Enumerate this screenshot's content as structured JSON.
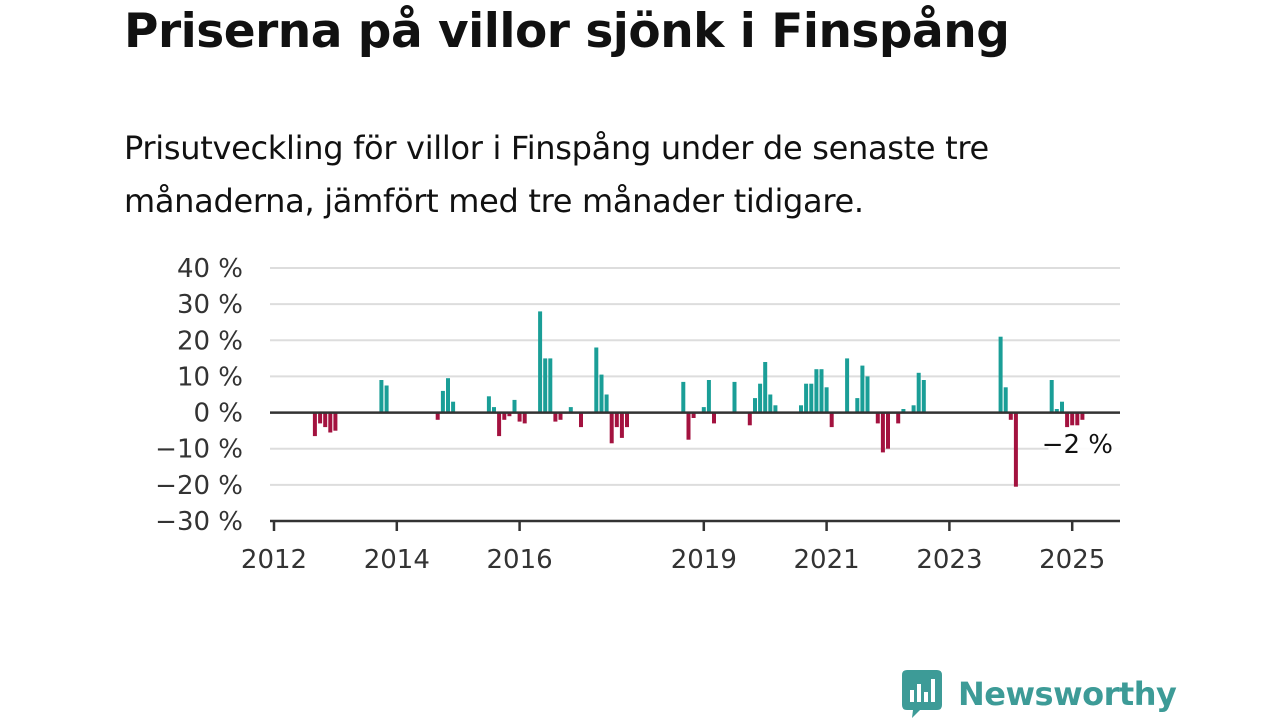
{
  "title": "Priserna på villor sjönk i Finspång",
  "subtitle": "Prisutveckling för villor i Finspång under de senaste tre månaderna, jämfört med tre månader tidigare.",
  "brand": {
    "name": "Newsworthy",
    "color": "#3d9b97",
    "icon": "bar-chart-speech-bubble-icon"
  },
  "colors": {
    "positive": "#1a9e97",
    "negative": "#a3123f",
    "gridline": "#dddddd",
    "axis": "#333333"
  },
  "chart_data": {
    "type": "bar",
    "title": "Priserna på villor sjönk i Finspång",
    "subtitle": "Prisutveckling för villor i Finspång under de senaste tre månaderna, jämfört med tre månader tidigare.",
    "xlabel": "",
    "ylabel": "",
    "ylim": [
      -30,
      40
    ],
    "yticks": [
      40,
      30,
      20,
      10,
      0,
      -10,
      -20,
      -30
    ],
    "ytick_labels": [
      "40 %",
      "30 %",
      "20 %",
      "10 %",
      "0 %",
      "−10 %",
      "−20 %",
      "−30 %"
    ],
    "xticks": [
      "2012",
      "2014",
      "2016",
      "2019",
      "2021",
      "2023",
      "2025"
    ],
    "grid": true,
    "annotation": {
      "text": "−2 %",
      "target": "last bar"
    },
    "unit": "%",
    "bars": [
      {
        "x": "2012-09",
        "y": -6.5
      },
      {
        "x": "2012-10",
        "y": -3
      },
      {
        "x": "2012-11",
        "y": -4
      },
      {
        "x": "2012-12",
        "y": -5.5
      },
      {
        "x": "2013-01",
        "y": -5
      },
      {
        "x": "2013-10",
        "y": 9
      },
      {
        "x": "2013-11",
        "y": 7.5
      },
      {
        "x": "2014-09",
        "y": -2
      },
      {
        "x": "2014-10",
        "y": 6
      },
      {
        "x": "2014-11",
        "y": 9.5
      },
      {
        "x": "2014-12",
        "y": 3
      },
      {
        "x": "2015-07",
        "y": 4.5
      },
      {
        "x": "2015-08",
        "y": 1.5
      },
      {
        "x": "2015-09",
        "y": -6.5
      },
      {
        "x": "2015-10",
        "y": -2
      },
      {
        "x": "2015-11",
        "y": -1
      },
      {
        "x": "2015-12",
        "y": 3.5
      },
      {
        "x": "2016-01",
        "y": -2.5
      },
      {
        "x": "2016-02",
        "y": -3
      },
      {
        "x": "2016-05",
        "y": 28
      },
      {
        "x": "2016-06",
        "y": 15
      },
      {
        "x": "2016-07",
        "y": 15
      },
      {
        "x": "2016-08",
        "y": -2.5
      },
      {
        "x": "2016-09",
        "y": -2
      },
      {
        "x": "2016-11",
        "y": 1.5
      },
      {
        "x": "2017-01",
        "y": -4
      },
      {
        "x": "2017-04",
        "y": 18
      },
      {
        "x": "2017-05",
        "y": 10.5
      },
      {
        "x": "2017-06",
        "y": 5
      },
      {
        "x": "2017-07",
        "y": -8.5
      },
      {
        "x": "2017-08",
        "y": -4
      },
      {
        "x": "2017-09",
        "y": -7
      },
      {
        "x": "2017-10",
        "y": -4
      },
      {
        "x": "2018-09",
        "y": 8.5
      },
      {
        "x": "2018-10",
        "y": -7.5
      },
      {
        "x": "2018-11",
        "y": -1.5
      },
      {
        "x": "2019-01",
        "y": 1.5
      },
      {
        "x": "2019-02",
        "y": 9
      },
      {
        "x": "2019-03",
        "y": -3
      },
      {
        "x": "2019-07",
        "y": 8.5
      },
      {
        "x": "2019-10",
        "y": -3.5
      },
      {
        "x": "2019-11",
        "y": 4
      },
      {
        "x": "2019-12",
        "y": 8
      },
      {
        "x": "2020-01",
        "y": 14
      },
      {
        "x": "2020-02",
        "y": 5
      },
      {
        "x": "2020-03",
        "y": 2
      },
      {
        "x": "2020-08",
        "y": 2
      },
      {
        "x": "2020-09",
        "y": 8
      },
      {
        "x": "2020-10",
        "y": 8
      },
      {
        "x": "2020-11",
        "y": 12
      },
      {
        "x": "2020-12",
        "y": 12
      },
      {
        "x": "2021-01",
        "y": 7
      },
      {
        "x": "2021-02",
        "y": -4
      },
      {
        "x": "2021-05",
        "y": 15
      },
      {
        "x": "2021-07",
        "y": 4
      },
      {
        "x": "2021-08",
        "y": 13
      },
      {
        "x": "2021-09",
        "y": 10
      },
      {
        "x": "2021-11",
        "y": -3
      },
      {
        "x": "2021-12",
        "y": -11
      },
      {
        "x": "2022-01",
        "y": -10
      },
      {
        "x": "2022-03",
        "y": -3
      },
      {
        "x": "2022-04",
        "y": 1
      },
      {
        "x": "2022-06",
        "y": 2
      },
      {
        "x": "2022-07",
        "y": 11
      },
      {
        "x": "2022-08",
        "y": 9
      },
      {
        "x": "2023-11",
        "y": 21
      },
      {
        "x": "2023-12",
        "y": 7
      },
      {
        "x": "2024-01",
        "y": -2
      },
      {
        "x": "2024-02",
        "y": -20.5
      },
      {
        "x": "2024-09",
        "y": 9
      },
      {
        "x": "2024-10",
        "y": 1
      },
      {
        "x": "2024-11",
        "y": 3
      },
      {
        "x": "2024-12",
        "y": -4
      },
      {
        "x": "2025-01",
        "y": -3.5
      },
      {
        "x": "2025-02",
        "y": -3.5
      },
      {
        "x": "2025-03",
        "y": -2
      }
    ]
  }
}
